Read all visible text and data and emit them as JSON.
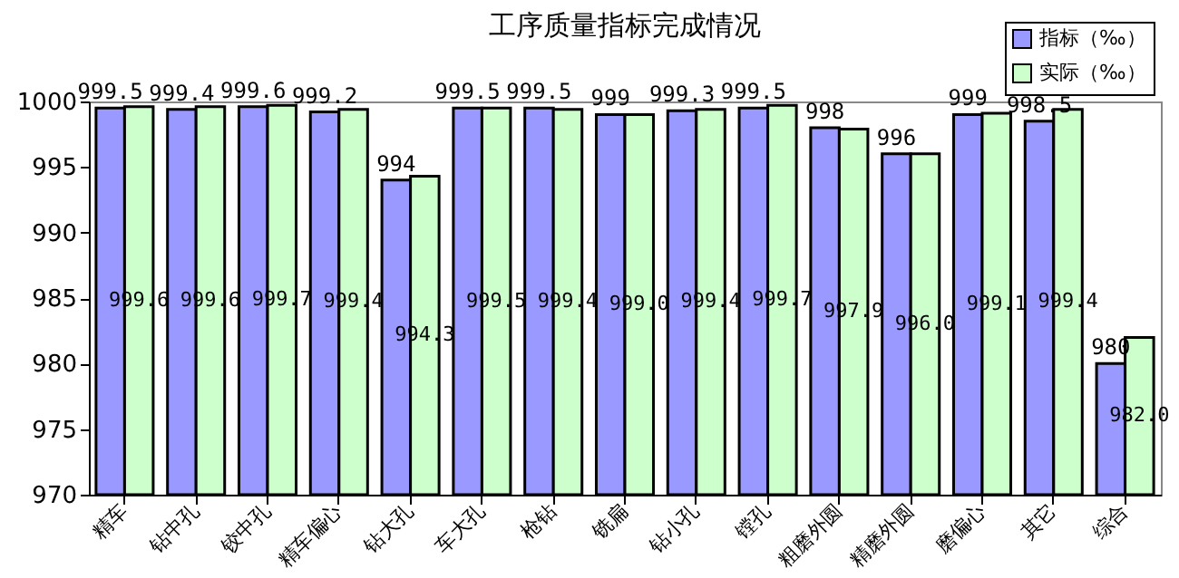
{
  "chart_data": {
    "type": "bar",
    "title": "工序质量指标完成情况",
    "categories": [
      "精车",
      "钻中孔",
      "铰中孔",
      "精车偏心",
      "钻大孔",
      "车大孔",
      "枪钻",
      "铣扁",
      "钻小孔",
      "镗孔",
      "粗磨外圆",
      "精磨外圆",
      "磨偏心",
      "其它",
      "综合"
    ],
    "series": [
      {
        "name": "指标（‰）",
        "color": "#9999ff",
        "values": [
          999.5,
          999.4,
          999.6,
          999.2,
          994,
          999.5,
          999.5,
          999,
          999.3,
          999.5,
          998,
          996,
          999,
          998.5,
          980
        ],
        "value_labels": [
          "999.5",
          "999.4",
          "999.6",
          "999.2",
          "994",
          "999.5",
          "999.5",
          "999",
          "999.3",
          "999.5",
          "998",
          "996",
          "999",
          "998.5",
          "980"
        ]
      },
      {
        "name": "实际（‰）",
        "color": "#ccffcc",
        "values": [
          999.6,
          999.6,
          999.7,
          999.4,
          994.3,
          999.5,
          999.4,
          999.0,
          999.4,
          999.7,
          997.9,
          996.0,
          999.1,
          999.4,
          982.0
        ],
        "value_labels": [
          "999.6",
          "999.6",
          "999.7",
          "999.4",
          "994.3",
          "999.5",
          "999.4",
          "999.0",
          "999.4",
          "999.7",
          "997.9",
          "996.0",
          "999.1",
          "999.4",
          "982.0"
        ]
      }
    ],
    "ylim": [
      970,
      1000
    ],
    "yticks": [
      970,
      975,
      980,
      985,
      990,
      995,
      1000
    ],
    "grid": false,
    "legend": "top right"
  }
}
